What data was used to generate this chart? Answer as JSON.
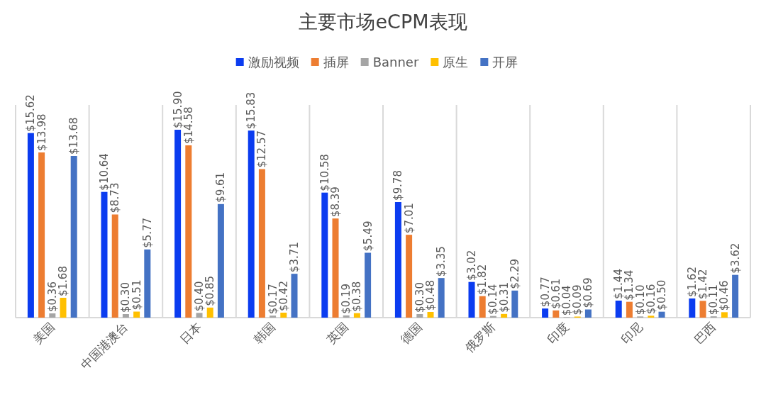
{
  "chart_data": {
    "type": "bar",
    "title": "主要市场eCPM表现",
    "categories": [
      "美国",
      "中国港澳台",
      "日本",
      "韩国",
      "英国",
      "德国",
      "俄罗斯",
      "印度",
      "印尼",
      "巴西"
    ],
    "legend": "top",
    "grid": "x",
    "series": [
      {
        "name": "激励视频",
        "color": "#0b3cf0",
        "values": [
          15.62,
          10.64,
          15.9,
          15.83,
          10.58,
          9.78,
          3.02,
          0.77,
          1.44,
          1.62
        ],
        "value_labels": [
          "$15.62",
          "$10.64",
          "$15.90",
          "$15.83",
          "$10.58",
          "$9.78",
          "$3.02",
          "$0.77",
          "$1.44",
          "$1.62"
        ]
      },
      {
        "name": "插屏",
        "color": "#ed7d31",
        "values": [
          13.98,
          8.73,
          14.58,
          12.57,
          8.39,
          7.01,
          1.82,
          0.61,
          1.34,
          1.42
        ],
        "value_labels": [
          "$13.98",
          "$8.73",
          "$14.58",
          "$12.57",
          "$8.39",
          "$7.01",
          "$1.82",
          "$0.61",
          "$1.34",
          "$1.42"
        ]
      },
      {
        "name": "Banner",
        "color": "#a5a5a5",
        "values": [
          0.36,
          0.3,
          0.4,
          0.17,
          0.19,
          0.3,
          0.14,
          0.04,
          0.1,
          0.11
        ],
        "value_labels": [
          "$0.36",
          "$0.30",
          "$0.40",
          "$0.17",
          "$0.19",
          "$0.30",
          "$0.14",
          "$0.04",
          "$0.10",
          "$0.11"
        ]
      },
      {
        "name": "原生",
        "color": "#ffc000",
        "values": [
          1.68,
          0.51,
          0.85,
          0.42,
          0.38,
          0.48,
          0.31,
          0.09,
          0.16,
          0.46
        ],
        "value_labels": [
          "$1.68",
          "$0.51",
          "$0.85",
          "$0.42",
          "$0.38",
          "$0.48",
          "$0.31",
          "$0.09",
          "$0.16",
          "$0.46"
        ]
      },
      {
        "name": "开屏",
        "color": "#4472c4",
        "values": [
          13.68,
          5.77,
          9.61,
          3.71,
          5.49,
          3.35,
          2.29,
          0.69,
          0.5,
          3.62
        ],
        "value_labels": [
          "$13.68",
          "$5.77",
          "$9.61",
          "$3.71",
          "$5.49",
          "$3.35",
          "$2.29",
          "$0.69",
          "$0.50",
          "$3.62"
        ]
      }
    ]
  }
}
